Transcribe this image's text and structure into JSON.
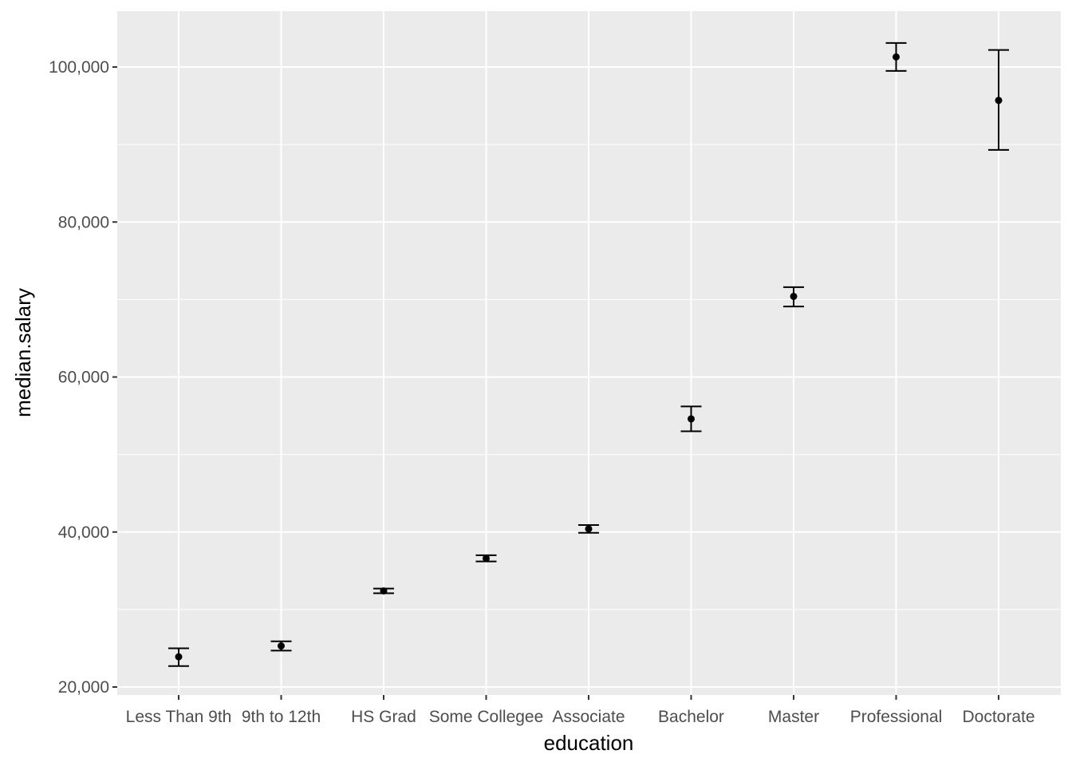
{
  "chart_data": {
    "type": "scatter",
    "xlabel": "education",
    "ylabel": "median.salary",
    "categories": [
      "Less Than 9th",
      "9th to 12th",
      "HS Grad",
      "Some Collegee",
      "Associate",
      "Bachelor",
      "Master",
      "Professional",
      "Doctorate"
    ],
    "series": [
      {
        "values": [
          23900,
          25300,
          32400,
          36600,
          40400,
          54600,
          70400,
          101300,
          95700
        ],
        "lower": [
          22700,
          24700,
          32100,
          36200,
          39900,
          53000,
          69100,
          99500,
          89300
        ],
        "upper": [
          25000,
          25900,
          32700,
          37000,
          40900,
          56200,
          71600,
          103100,
          102200
        ]
      }
    ],
    "y_ticks": [
      20000,
      40000,
      60000,
      80000,
      100000
    ],
    "y_tick_labels": [
      "20,000",
      "40,000",
      "60,000",
      "80,000",
      "100,000"
    ],
    "ylim": [
      19000,
      106000
    ],
    "grid": true,
    "legend": "none",
    "colors": {
      "panel": "#EBEBEB",
      "grid": "#FFFFFF",
      "marks": "#000000",
      "tick_text": "#4D4D4D"
    }
  }
}
